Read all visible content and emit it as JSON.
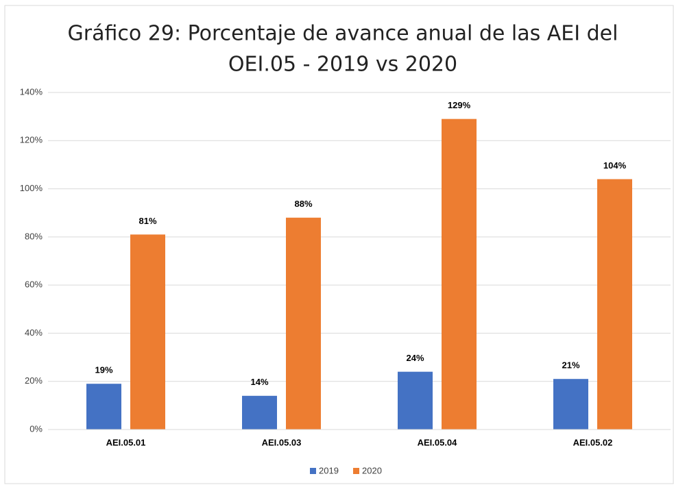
{
  "chart_data": {
    "type": "bar",
    "title": [
      "Gráfico 29: Porcentaje de avance anual de las AEI del",
      "OEI.05 - 2019 vs 2020"
    ],
    "categories": [
      "AEI.05.01",
      "AEI.05.03",
      "AEI.05.04",
      "AEI.05.02"
    ],
    "series": [
      {
        "name": "2019",
        "color": "#4472c4",
        "values": [
          19,
          14,
          24,
          21
        ],
        "value_labels": [
          "19%",
          "14%",
          "24%",
          "21%"
        ]
      },
      {
        "name": "2020",
        "color": "#ed7d31",
        "values": [
          81,
          88,
          129,
          104
        ],
        "value_labels": [
          "81%",
          "88%",
          "129%",
          "104%"
        ]
      }
    ],
    "ylim": [
      0,
      140
    ],
    "yticks": [
      {
        "value": 0,
        "label": "0%"
      },
      {
        "value": 20,
        "label": "20%"
      },
      {
        "value": 40,
        "label": "40%"
      },
      {
        "value": 60,
        "label": "60%"
      },
      {
        "value": 80,
        "label": "80%"
      },
      {
        "value": 100,
        "label": "100%"
      },
      {
        "value": 120,
        "label": "120%"
      },
      {
        "value": 140,
        "label": "140%"
      }
    ],
    "grid": true,
    "legend": "bottom"
  }
}
